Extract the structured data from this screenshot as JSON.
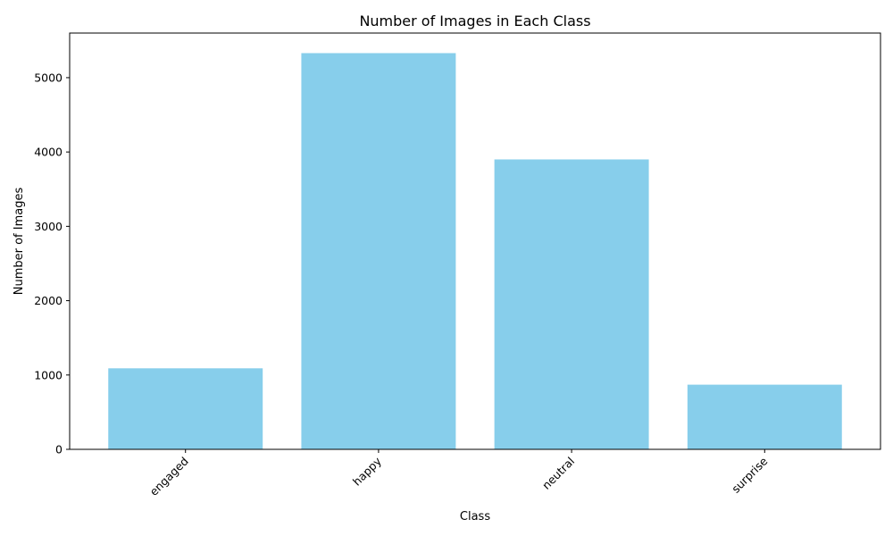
{
  "chart_data": {
    "type": "bar",
    "title": "Number of Images in Each Class",
    "xlabel": "Class",
    "ylabel": "Number of Images",
    "categories": [
      "engaged",
      "happy",
      "neutral",
      "surprise"
    ],
    "values": [
      1090,
      5330,
      3900,
      870
    ],
    "ylim": [
      0,
      5600
    ],
    "yticks": [
      0,
      1000,
      2000,
      3000,
      4000,
      5000
    ],
    "bar_color": "#87ceeb",
    "grid": false,
    "legend": "none"
  }
}
